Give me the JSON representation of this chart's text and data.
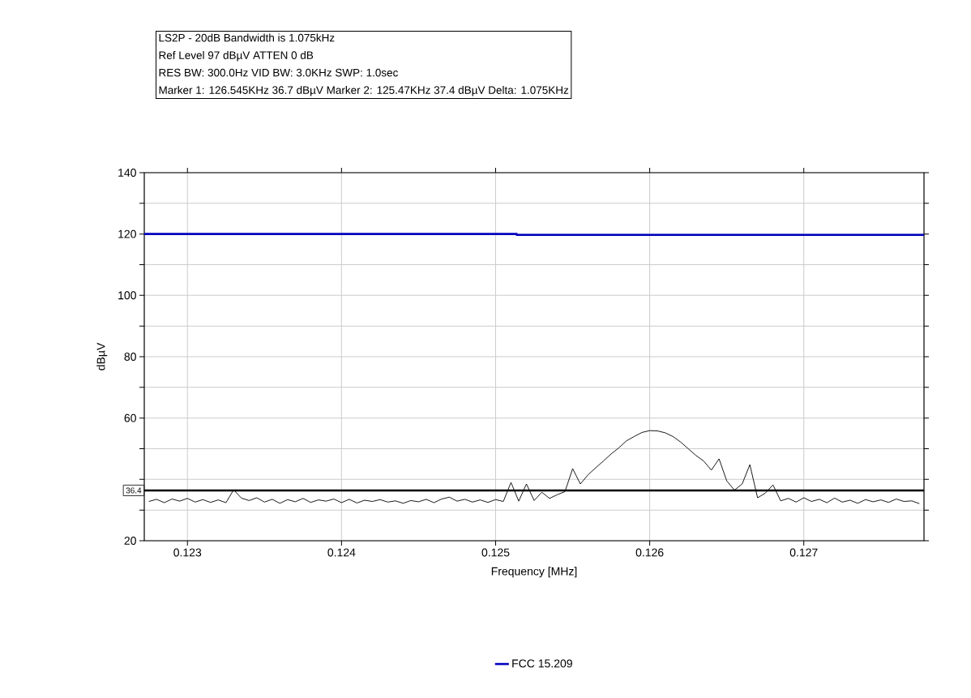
{
  "chart_data": {
    "type": "line",
    "xlabel": "Frequency [MHz]",
    "ylabel": "dBµV",
    "annotations": [
      "LS2P -  20dB Bandwidth is 1.075kHz",
      "Ref Level 97 dBµV    ATTEN 0 dB",
      "RES BW: 300.0Hz  VID BW: 3.0KHz  SWP: 1.0sec",
      "Marker 1: 126.545KHz  36.7 dBµV    Marker 2: 125.47KHz  37.4 dBµV Delta: 1.075KHz"
    ],
    "xlim": [
      0.12272,
      0.12778
    ],
    "xticks": [
      0.123,
      0.124,
      0.125,
      0.126,
      0.127
    ],
    "ylim": [
      20,
      140
    ],
    "yticks": [
      20,
      {
        "value": 30,
        "label": null
      },
      {
        "value": 40,
        "label": null
      },
      {
        "value": 50,
        "label": null
      },
      60,
      {
        "value": 70,
        "label": null
      },
      80,
      {
        "value": 90,
        "label": null
      },
      100,
      {
        "value": 110,
        "label": null
      },
      120,
      {
        "value": 130,
        "label": null
      },
      140
    ],
    "grid": true,
    "legend": "bottom",
    "ref_lines": [
      {
        "axis": "y",
        "value": 36.4,
        "label": "36.4",
        "color": "#000000"
      }
    ],
    "series": [
      {
        "name": "FCC 15.209",
        "color": "#0000c0",
        "x": [
          0.12272,
          0.125137,
          0.125137,
          0.12778
        ],
        "values": [
          120,
          120,
          119.7,
          119.7
        ]
      },
      {
        "color": "#000000",
        "x": [
          0.12275,
          0.1228,
          0.12285,
          0.1229,
          0.12295,
          0.123,
          0.12305,
          0.1231,
          0.12315,
          0.1232,
          0.12325,
          0.1233,
          0.12335,
          0.1234,
          0.12345,
          0.1235,
          0.12355,
          0.1236,
          0.12365,
          0.1237,
          0.12375,
          0.1238,
          0.12385,
          0.1239,
          0.12395,
          0.124,
          0.12405,
          0.1241,
          0.12415,
          0.1242,
          0.12425,
          0.1243,
          0.12435,
          0.1244,
          0.12445,
          0.1245,
          0.12455,
          0.1246,
          0.12465,
          0.1247,
          0.12475,
          0.1248,
          0.12485,
          0.1249,
          0.12495,
          0.125,
          0.12505,
          0.1251,
          0.12515,
          0.1252,
          0.12525,
          0.1253,
          0.12535,
          0.1254,
          0.12545,
          0.1255,
          0.12555,
          0.1256,
          0.12565,
          0.1257,
          0.12575,
          0.1258,
          0.12585,
          0.1259,
          0.12595,
          0.126,
          0.12605,
          0.1261,
          0.12615,
          0.1262,
          0.12625,
          0.1263,
          0.12635,
          0.1264,
          0.12645,
          0.1265,
          0.12655,
          0.1266,
          0.12665,
          0.1267,
          0.12675,
          0.1268,
          0.12685,
          0.1269,
          0.12695,
          0.127,
          0.12705,
          0.1271,
          0.12715,
          0.1272,
          0.12725,
          0.1273,
          0.12735,
          0.1274,
          0.12745,
          0.1275,
          0.12755,
          0.1276,
          0.12765,
          0.1277,
          0.12775
        ],
        "values": [
          32.8,
          33.5,
          32.4,
          33.6,
          32.9,
          33.8,
          32.6,
          33.4,
          32.5,
          33.3,
          32.4,
          36.6,
          33.9,
          33.1,
          34.0,
          32.6,
          33.5,
          32.2,
          33.4,
          32.7,
          33.8,
          32.5,
          33.3,
          32.9,
          33.6,
          32.4,
          33.5,
          32.3,
          33.2,
          32.8,
          33.4,
          32.6,
          33.0,
          32.2,
          33.1,
          32.7,
          33.5,
          32.4,
          33.6,
          34.2,
          32.9,
          33.5,
          32.6,
          33.3,
          32.5,
          33.4,
          32.8,
          39.0,
          32.9,
          38.5,
          33.1,
          35.8,
          33.8,
          35.0,
          36.0,
          43.5,
          38.5,
          41.5,
          43.8,
          46.0,
          48.3,
          50.3,
          52.6,
          54.0,
          55.3,
          55.9,
          55.8,
          55.2,
          54.0,
          52.2,
          50.0,
          47.8,
          46.0,
          43.0,
          46.7,
          39.5,
          36.5,
          38.5,
          44.8,
          34.0,
          35.5,
          38.2,
          33.0,
          33.8,
          32.6,
          34.0,
          32.8,
          33.5,
          32.4,
          33.9,
          32.6,
          33.2,
          32.2,
          33.4,
          32.7,
          33.3,
          32.5,
          33.6,
          32.8,
          33.0,
          32.1
        ]
      }
    ]
  }
}
